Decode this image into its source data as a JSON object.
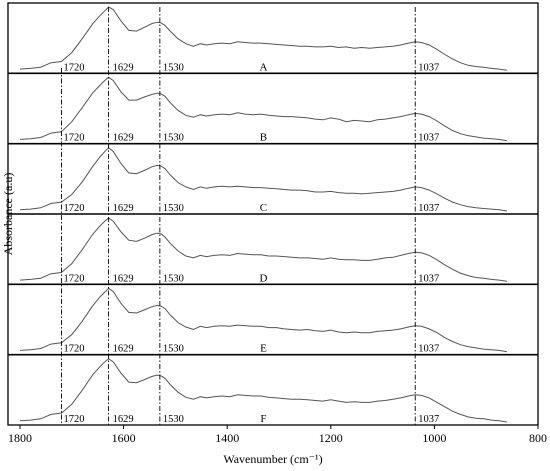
{
  "chart_data": {
    "type": "line",
    "xlabel": "Wavenumber (cm⁻¹)",
    "ylabel": "Absorbance (a.u)",
    "xlim": [
      1800,
      800
    ],
    "x_reversed": true,
    "x_ticks": [
      1800,
      1600,
      1400,
      1200,
      1000,
      800
    ],
    "y_ticks_shown": false,
    "grid": false,
    "stacked_panels": true,
    "reference_lines": [
      1720,
      1629,
      1530,
      1037
    ],
    "peak_labels": [
      "1720",
      "1629",
      "1530",
      "1037"
    ],
    "x": [
      1800,
      1780,
      1760,
      1740,
      1730,
      1720,
      1700,
      1680,
      1660,
      1645,
      1635,
      1629,
      1620,
      1605,
      1590,
      1575,
      1560,
      1545,
      1535,
      1528,
      1520,
      1510,
      1495,
      1480,
      1465,
      1452,
      1440,
      1425,
      1410,
      1395,
      1380,
      1365,
      1350,
      1335,
      1320,
      1305,
      1290,
      1275,
      1260,
      1245,
      1230,
      1215,
      1200,
      1185,
      1170,
      1155,
      1140,
      1125,
      1110,
      1095,
      1080,
      1065,
      1050,
      1037,
      1025,
      1010,
      995,
      980,
      965,
      950,
      935,
      920,
      905,
      890,
      875,
      860
    ],
    "series": [
      {
        "name": "A",
        "values": [
          0.02,
          0.03,
          0.05,
          0.12,
          0.13,
          0.14,
          0.28,
          0.5,
          0.73,
          0.87,
          0.95,
          1.0,
          0.96,
          0.78,
          0.63,
          0.62,
          0.68,
          0.74,
          0.76,
          0.75,
          0.71,
          0.62,
          0.5,
          0.42,
          0.38,
          0.42,
          0.4,
          0.42,
          0.43,
          0.42,
          0.45,
          0.44,
          0.43,
          0.43,
          0.42,
          0.41,
          0.4,
          0.39,
          0.38,
          0.38,
          0.37,
          0.37,
          0.38,
          0.36,
          0.37,
          0.35,
          0.36,
          0.35,
          0.36,
          0.37,
          0.38,
          0.4,
          0.43,
          0.45,
          0.44,
          0.4,
          0.33,
          0.25,
          0.18,
          0.12,
          0.08,
          0.06,
          0.05,
          0.03,
          0.02,
          0.0
        ]
      },
      {
        "name": "B",
        "values": [
          0.02,
          0.03,
          0.05,
          0.12,
          0.13,
          0.14,
          0.3,
          0.52,
          0.75,
          0.88,
          0.96,
          1.0,
          0.95,
          0.77,
          0.64,
          0.64,
          0.69,
          0.73,
          0.75,
          0.74,
          0.7,
          0.6,
          0.48,
          0.4,
          0.37,
          0.41,
          0.39,
          0.41,
          0.42,
          0.41,
          0.44,
          0.42,
          0.41,
          0.42,
          0.4,
          0.39,
          0.38,
          0.38,
          0.37,
          0.36,
          0.34,
          0.33,
          0.36,
          0.34,
          0.3,
          0.32,
          0.31,
          0.3,
          0.33,
          0.34,
          0.36,
          0.38,
          0.41,
          0.43,
          0.42,
          0.38,
          0.31,
          0.23,
          0.16,
          0.11,
          0.08,
          0.06,
          0.04,
          0.03,
          0.02,
          0.0
        ]
      },
      {
        "name": "C",
        "values": [
          0.02,
          0.03,
          0.05,
          0.12,
          0.13,
          0.14,
          0.26,
          0.46,
          0.7,
          0.86,
          0.95,
          1.0,
          0.94,
          0.75,
          0.6,
          0.59,
          0.64,
          0.7,
          0.72,
          0.71,
          0.67,
          0.57,
          0.45,
          0.38,
          0.34,
          0.38,
          0.36,
          0.38,
          0.39,
          0.38,
          0.39,
          0.38,
          0.37,
          0.37,
          0.36,
          0.35,
          0.34,
          0.33,
          0.33,
          0.32,
          0.3,
          0.3,
          0.31,
          0.29,
          0.28,
          0.28,
          0.27,
          0.28,
          0.29,
          0.3,
          0.31,
          0.33,
          0.36,
          0.38,
          0.37,
          0.33,
          0.27,
          0.2,
          0.14,
          0.1,
          0.07,
          0.05,
          0.04,
          0.03,
          0.02,
          0.0
        ]
      },
      {
        "name": "D",
        "values": [
          0.02,
          0.03,
          0.05,
          0.12,
          0.13,
          0.14,
          0.28,
          0.5,
          0.74,
          0.88,
          0.96,
          1.0,
          0.95,
          0.78,
          0.65,
          0.63,
          0.68,
          0.74,
          0.76,
          0.75,
          0.7,
          0.6,
          0.48,
          0.4,
          0.37,
          0.41,
          0.39,
          0.41,
          0.42,
          0.41,
          0.44,
          0.43,
          0.42,
          0.42,
          0.4,
          0.4,
          0.39,
          0.38,
          0.37,
          0.37,
          0.36,
          0.35,
          0.37,
          0.35,
          0.34,
          0.34,
          0.33,
          0.33,
          0.35,
          0.37,
          0.38,
          0.41,
          0.44,
          0.46,
          0.45,
          0.41,
          0.34,
          0.26,
          0.19,
          0.13,
          0.09,
          0.06,
          0.05,
          0.03,
          0.02,
          0.0
        ]
      },
      {
        "name": "E",
        "values": [
          0.02,
          0.03,
          0.05,
          0.12,
          0.13,
          0.14,
          0.27,
          0.48,
          0.72,
          0.87,
          0.95,
          1.0,
          0.95,
          0.76,
          0.62,
          0.61,
          0.66,
          0.71,
          0.73,
          0.72,
          0.68,
          0.58,
          0.46,
          0.39,
          0.35,
          0.4,
          0.38,
          0.4,
          0.41,
          0.4,
          0.42,
          0.41,
          0.4,
          0.4,
          0.38,
          0.38,
          0.36,
          0.35,
          0.34,
          0.35,
          0.33,
          0.32,
          0.34,
          0.31,
          0.3,
          0.31,
          0.3,
          0.3,
          0.32,
          0.33,
          0.34,
          0.36,
          0.39,
          0.41,
          0.4,
          0.36,
          0.3,
          0.22,
          0.16,
          0.11,
          0.08,
          0.06,
          0.04,
          0.03,
          0.02,
          0.0
        ]
      },
      {
        "name": "F",
        "values": [
          0.02,
          0.03,
          0.05,
          0.12,
          0.13,
          0.14,
          0.28,
          0.5,
          0.74,
          0.88,
          0.96,
          1.0,
          0.95,
          0.77,
          0.63,
          0.62,
          0.67,
          0.72,
          0.74,
          0.73,
          0.69,
          0.59,
          0.47,
          0.39,
          0.36,
          0.4,
          0.38,
          0.4,
          0.41,
          0.4,
          0.43,
          0.42,
          0.41,
          0.41,
          0.39,
          0.38,
          0.37,
          0.36,
          0.36,
          0.35,
          0.34,
          0.33,
          0.35,
          0.33,
          0.31,
          0.32,
          0.31,
          0.31,
          0.33,
          0.34,
          0.36,
          0.38,
          0.41,
          0.43,
          0.42,
          0.38,
          0.31,
          0.24,
          0.17,
          0.12,
          0.08,
          0.06,
          0.05,
          0.03,
          0.02,
          0.0
        ]
      }
    ]
  }
}
